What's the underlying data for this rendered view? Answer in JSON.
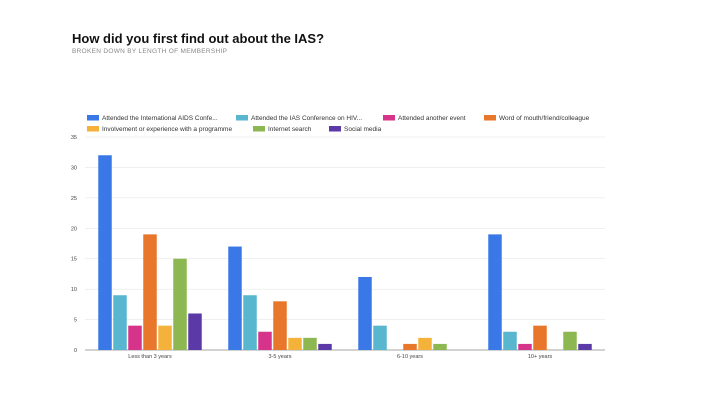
{
  "chart_data": {
    "type": "bar",
    "title": "How did you first find out about the IAS?",
    "subtitle": "BROKEN DOWN BY LENGTH OF MEMBERSHIP",
    "xlabel": "",
    "ylabel": "",
    "categories": [
      "Less than 3 years",
      "3-5 years",
      "6-10 years",
      "10+ years"
    ],
    "ylim": [
      0,
      35
    ],
    "yticks": [
      0,
      5,
      10,
      15,
      20,
      25,
      30,
      35
    ],
    "grid": true,
    "legend_position": "top",
    "series": [
      {
        "name": "Attended the International AIDS Confe...",
        "color": "#3b78e7",
        "values": [
          32,
          17,
          12,
          19
        ]
      },
      {
        "name": "Attended the IAS Conference on HIV...",
        "color": "#59b6cf",
        "values": [
          9,
          9,
          4,
          3
        ]
      },
      {
        "name": "Attended another event",
        "color": "#d6338a",
        "values": [
          4,
          3,
          0,
          1
        ]
      },
      {
        "name": "Word of mouth/friend/colleague",
        "color": "#e8762b",
        "values": [
          19,
          8,
          1,
          4
        ]
      },
      {
        "name": "Involvement or experience with a programme",
        "color": "#f4b23a",
        "values": [
          4,
          2,
          2,
          0
        ]
      },
      {
        "name": "Internet search",
        "color": "#8db851",
        "values": [
          15,
          2,
          1,
          3
        ]
      },
      {
        "name": "Social media",
        "color": "#5b3aa8",
        "values": [
          6,
          1,
          0,
          1
        ]
      }
    ]
  }
}
